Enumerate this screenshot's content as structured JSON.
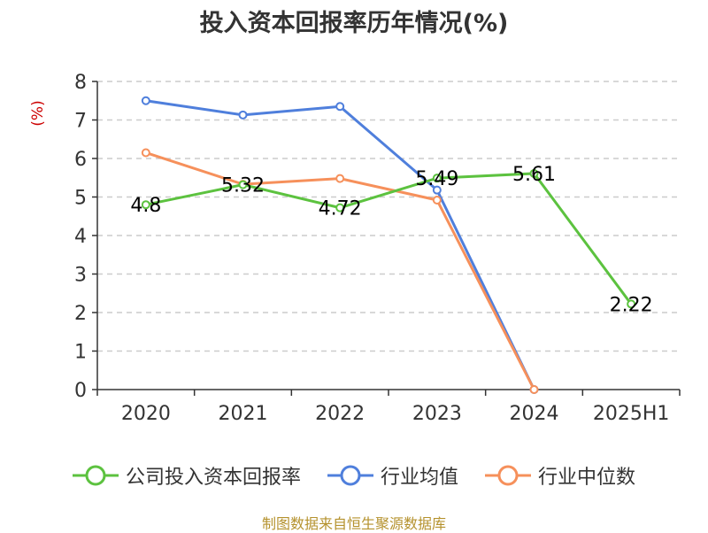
{
  "header": {
    "title": "投入资本回报率历年情况(%)"
  },
  "footer": {
    "source": "制图数据来自恒生聚源数据库"
  },
  "colors": {
    "company": "#5cc23f",
    "industry_avg": "#4f7fdc",
    "industry_median": "#f6905b",
    "axis": "#333333",
    "grid": "#cccccc",
    "unit": "#cc0000"
  },
  "chart_data": {
    "type": "line",
    "title": "投入资本回报率历年情况(%)",
    "ylabel": "(%)",
    "ylim": [
      0,
      8
    ],
    "yticks": [
      0,
      1,
      2,
      3,
      4,
      5,
      6,
      7,
      8
    ],
    "grid": true,
    "legend_position": "bottom",
    "categories": [
      "2020",
      "2021",
      "2022",
      "2023",
      "2024",
      "2025H1"
    ],
    "series": [
      {
        "name": "公司投入资本回报率",
        "color": "#5cc23f",
        "values": [
          4.8,
          5.32,
          4.72,
          5.49,
          5.61,
          2.22
        ],
        "labels": [
          "4.8",
          "5.32",
          "4.72",
          "5.49",
          "5.61",
          "2.22"
        ]
      },
      {
        "name": "行业均值",
        "color": "#4f7fdc",
        "values": [
          7.5,
          7.13,
          7.35,
          5.18,
          0,
          null
        ]
      },
      {
        "name": "行业中位数",
        "color": "#f6905b",
        "values": [
          6.15,
          5.33,
          5.48,
          4.92,
          0,
          null
        ]
      }
    ]
  }
}
